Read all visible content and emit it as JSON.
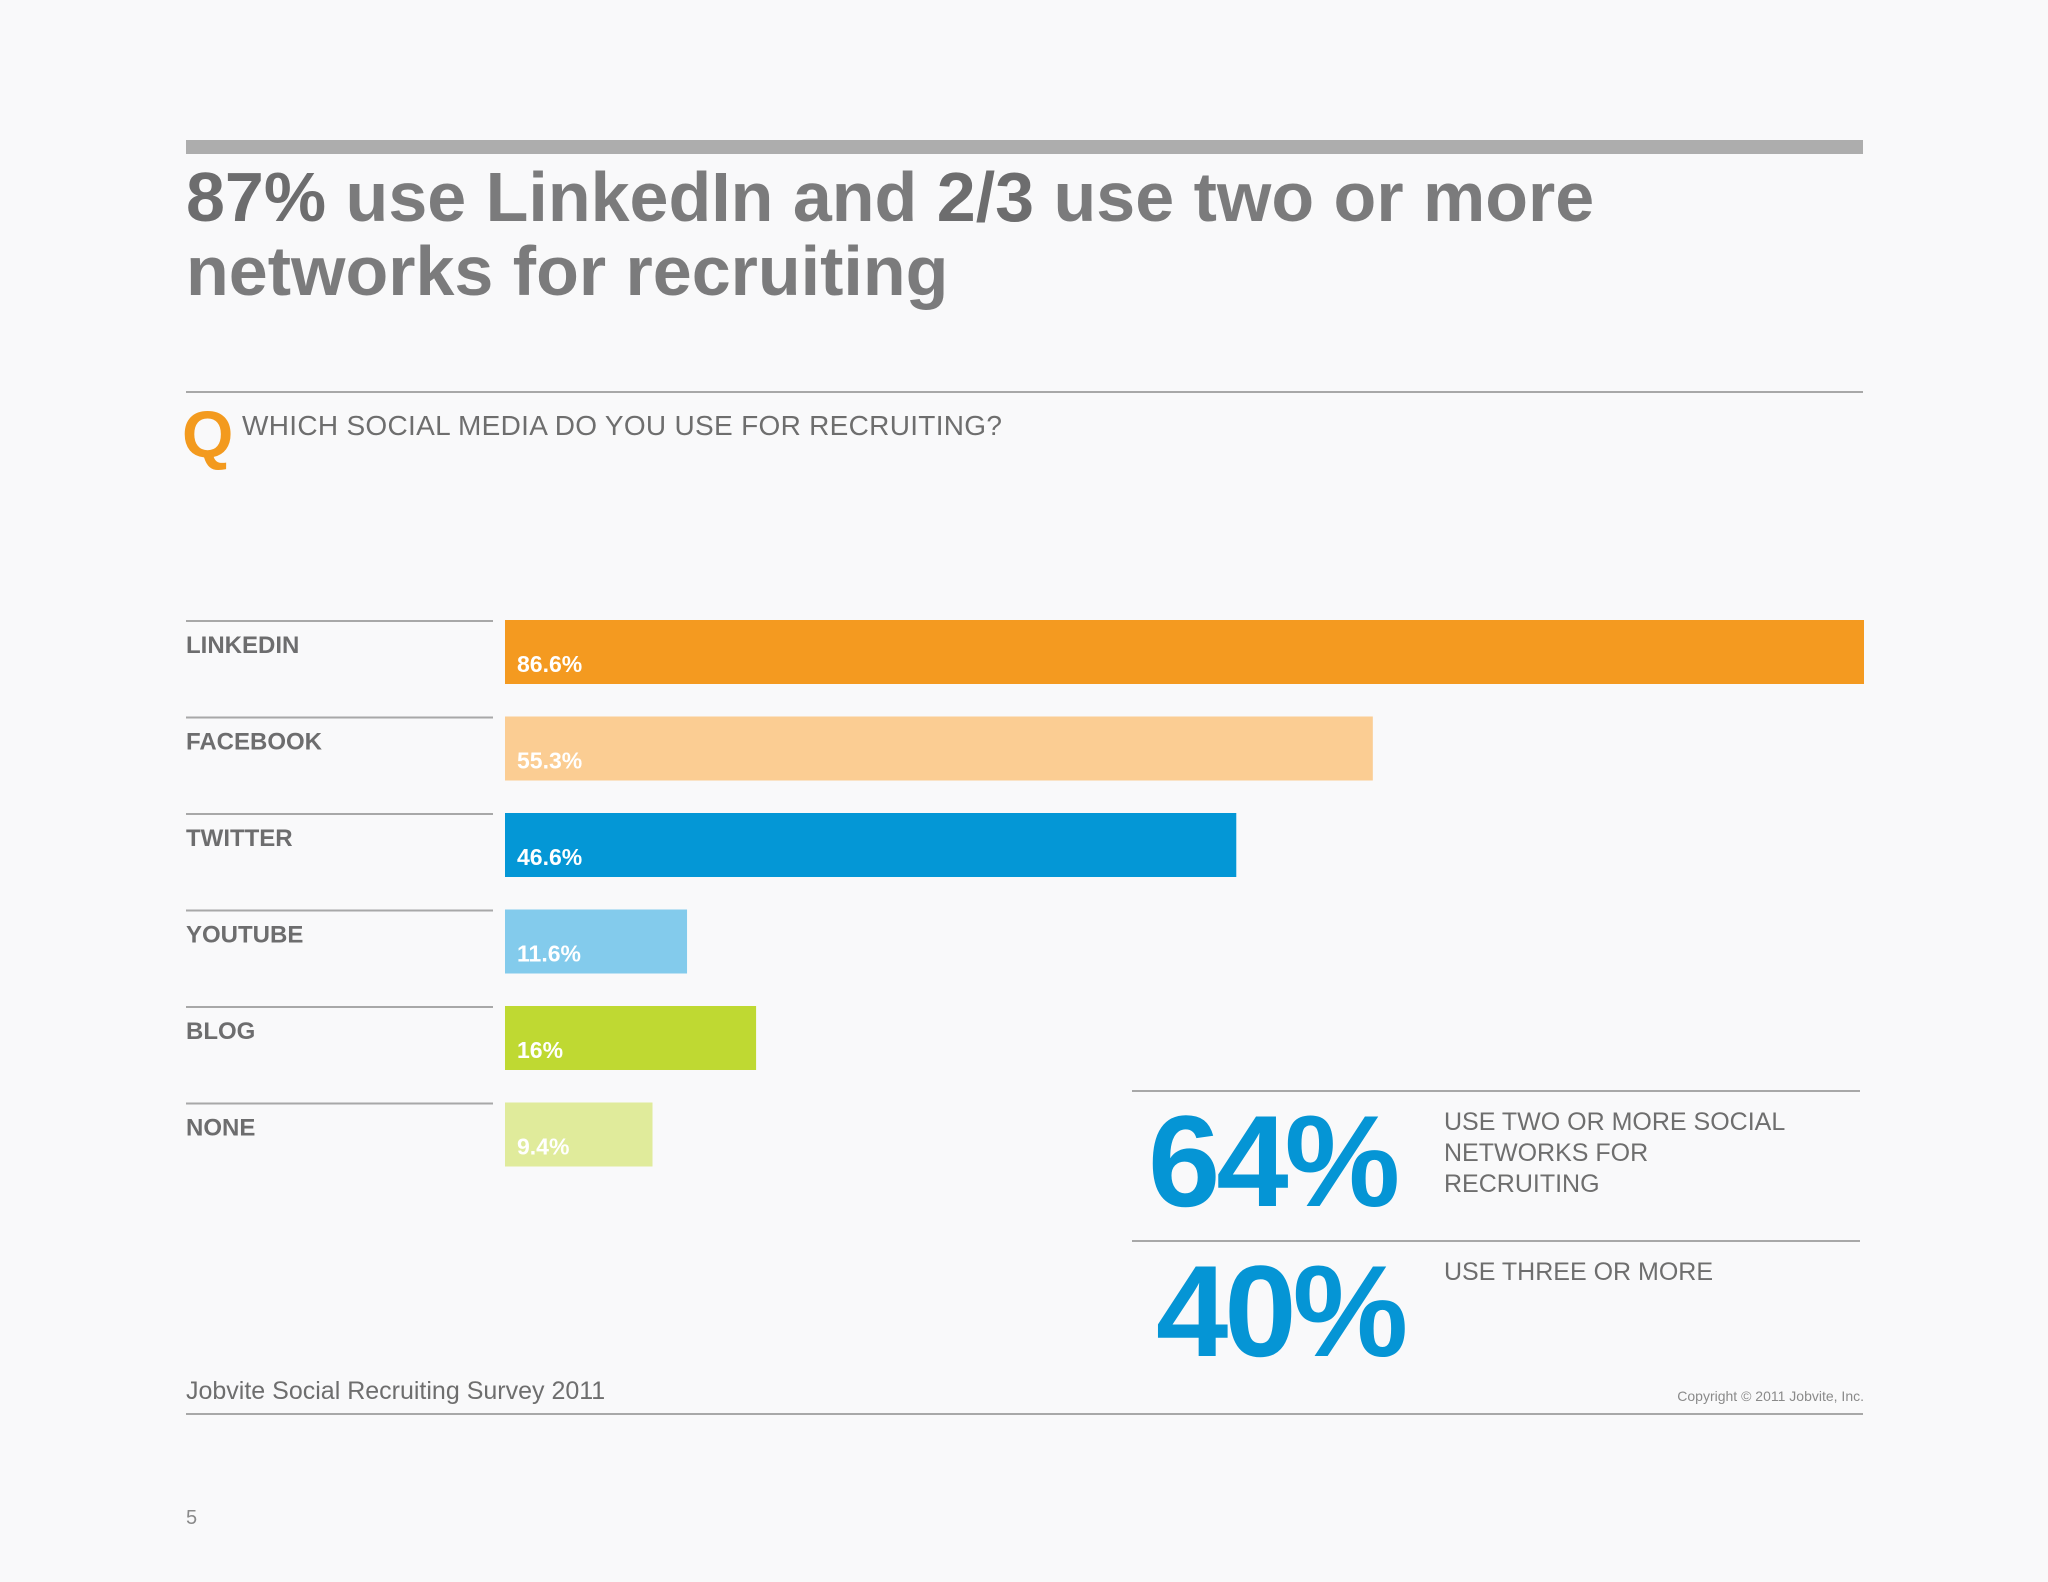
{
  "headline": {
    "part1": "87%",
    "part2": " use LinkedIn and ",
    "part3": "2/3",
    "part4": " use two or more networks for recruiting"
  },
  "question": {
    "mark": "Q",
    "text": "WHICH SOCIAL MEDIA DO YOU USE FOR RECRUITING?"
  },
  "chart_data": {
    "type": "bar",
    "orientation": "horizontal",
    "title": "",
    "xlabel": "",
    "ylabel": "",
    "xlim": [
      0,
      86.6
    ],
    "grid": false,
    "categories": [
      "LINKEDIN",
      "FACEBOOK",
      "TWITTER",
      "YOUTUBE",
      "BLOG",
      "NONE"
    ],
    "values": [
      86.6,
      55.3,
      46.6,
      11.6,
      16,
      9.4
    ],
    "value_labels": [
      "86.6%",
      "55.3%",
      "46.6%",
      "11.6%",
      "16%",
      "9.4%"
    ],
    "colors": [
      "#f49a20",
      "#fbcd93",
      "#0497d6",
      "#83cbec",
      "#bfd932",
      "#e0eb9b"
    ]
  },
  "stats": [
    {
      "value": "64%",
      "text": "USE TWO OR MORE SOCIAL NETWORKS FOR RECRUITING"
    },
    {
      "value": "40%",
      "text": "USE THREE OR MORE"
    }
  ],
  "footer": {
    "source": "Jobvite Social Recruiting Survey 2011",
    "copyright": "Copyright © 2011 Jobvite, Inc.",
    "page_number": "5"
  },
  "colors": {
    "accent_orange": "#f39a1e",
    "accent_blue": "#0595d5",
    "text_gray": "#6e6e6e"
  }
}
